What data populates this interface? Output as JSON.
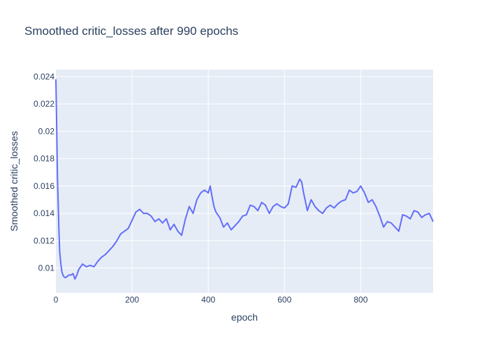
{
  "chart_data": {
    "type": "line",
    "title": "Smoothed critic_losses after 990 epochs",
    "xlabel": "epoch",
    "ylabel": "Smoothed critic_losses",
    "xlim": [
      0,
      990
    ],
    "ylim": [
      0.0082,
      0.0245
    ],
    "x_ticks": [
      0,
      200,
      400,
      600,
      800
    ],
    "y_ticks": [
      0.01,
      0.012,
      0.014,
      0.016,
      0.018,
      0.02,
      0.022,
      0.024
    ],
    "grid": true,
    "legend": "none",
    "colors": {
      "line": "#636efa",
      "plot_bg": "#e5ecf6",
      "grid": "#ffffff",
      "text": "#2a3f5f"
    },
    "series": [
      {
        "x": [
          0,
          2,
          4,
          6,
          8,
          10,
          13,
          16,
          20,
          25,
          30,
          35,
          40,
          45,
          50,
          55,
          60,
          65,
          70,
          80,
          90,
          100,
          110,
          120,
          130,
          140,
          150,
          160,
          170,
          180,
          190,
          200,
          210,
          220,
          230,
          240,
          250,
          260,
          270,
          280,
          290,
          300,
          310,
          320,
          330,
          340,
          350,
          360,
          370,
          380,
          390,
          400,
          405,
          410,
          415,
          420,
          430,
          440,
          450,
          460,
          470,
          480,
          490,
          500,
          510,
          520,
          530,
          540,
          550,
          560,
          570,
          580,
          590,
          600,
          610,
          620,
          630,
          640,
          645,
          650,
          660,
          670,
          680,
          690,
          700,
          710,
          720,
          730,
          740,
          750,
          760,
          770,
          780,
          790,
          800,
          810,
          820,
          830,
          840,
          850,
          860,
          870,
          880,
          890,
          900,
          910,
          920,
          930,
          940,
          950,
          960,
          970,
          980,
          990
        ],
        "y": [
          0.0238,
          0.0205,
          0.0168,
          0.0148,
          0.0128,
          0.0112,
          0.0103,
          0.0097,
          0.0094,
          0.0093,
          0.0094,
          0.0095,
          0.0095,
          0.0096,
          0.0092,
          0.0095,
          0.0099,
          0.0101,
          0.0103,
          0.0101,
          0.0102,
          0.0101,
          0.0105,
          0.0108,
          0.011,
          0.0113,
          0.0116,
          0.012,
          0.0125,
          0.0127,
          0.0129,
          0.0135,
          0.0141,
          0.0143,
          0.014,
          0.014,
          0.0138,
          0.0134,
          0.0136,
          0.0133,
          0.0136,
          0.0128,
          0.0132,
          0.0127,
          0.0124,
          0.0136,
          0.0145,
          0.014,
          0.015,
          0.0155,
          0.0157,
          0.0155,
          0.016,
          0.0152,
          0.0145,
          0.0141,
          0.0137,
          0.013,
          0.0133,
          0.0128,
          0.0131,
          0.0134,
          0.0138,
          0.0139,
          0.0146,
          0.0145,
          0.0142,
          0.0148,
          0.0146,
          0.014,
          0.0145,
          0.0147,
          0.0145,
          0.0144,
          0.0147,
          0.016,
          0.0159,
          0.0165,
          0.0163,
          0.0155,
          0.0142,
          0.015,
          0.0145,
          0.0142,
          0.014,
          0.0144,
          0.0146,
          0.0144,
          0.0147,
          0.0149,
          0.015,
          0.0157,
          0.0155,
          0.0156,
          0.016,
          0.0155,
          0.0148,
          0.015,
          0.0145,
          0.0138,
          0.013,
          0.0134,
          0.0133,
          0.013,
          0.0127,
          0.0139,
          0.0138,
          0.0136,
          0.0142,
          0.0141,
          0.0137,
          0.0139,
          0.014,
          0.0134
        ]
      }
    ]
  }
}
